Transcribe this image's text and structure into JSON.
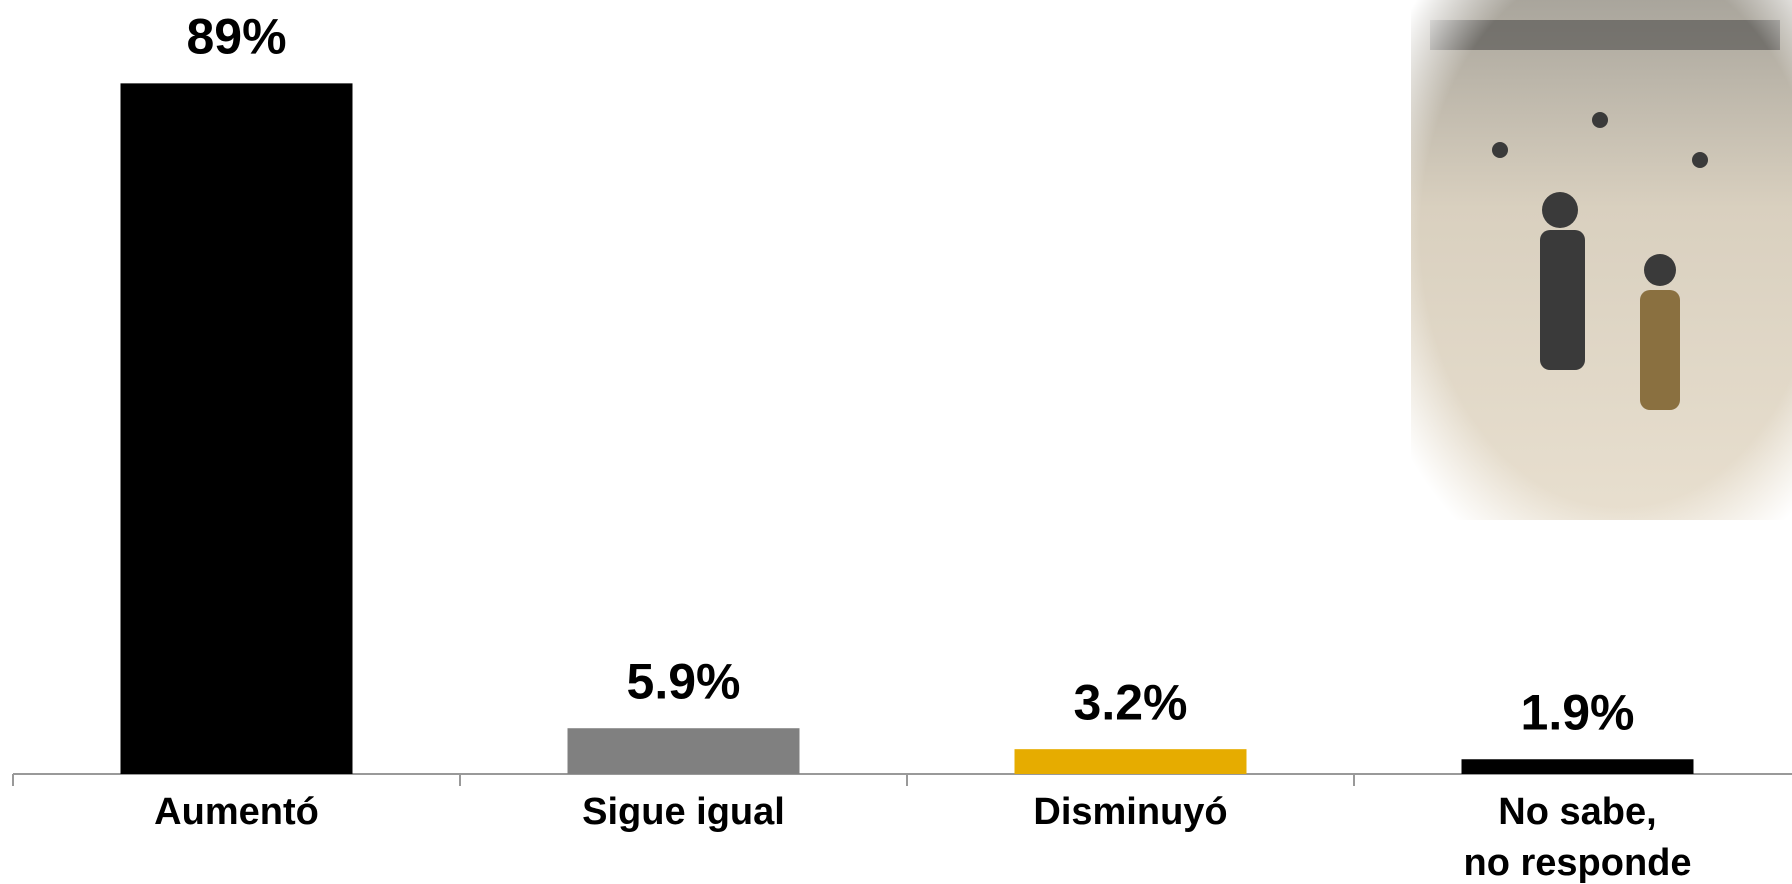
{
  "chart_data": {
    "type": "bar",
    "categories": [
      "Aumentó",
      "Sigue igual",
      "Disminuyó",
      "No sabe,\nno responde"
    ],
    "values": [
      89,
      5.9,
      3.2,
      1.9
    ],
    "value_labels": [
      "89%",
      "5.9%",
      "3.2%",
      "1.9%"
    ],
    "colors": [
      "#000000",
      "#808080",
      "#e6ac00",
      "#000000"
    ]
  }
}
